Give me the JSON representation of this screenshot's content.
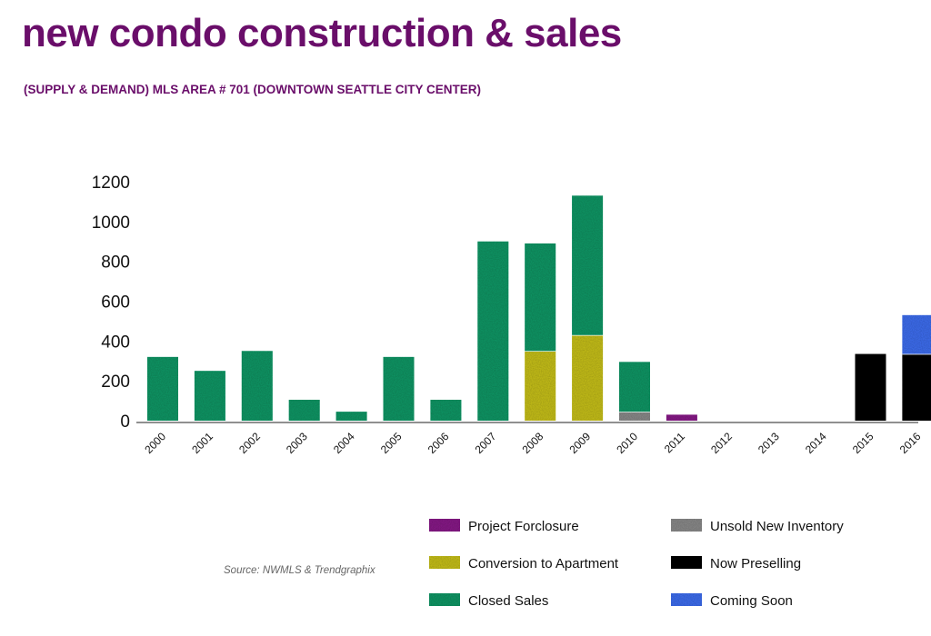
{
  "title": "new condo construction & sales",
  "subtitle": "(SUPPLY & DEMAND) MLS AREA # 701 (DOWNTOWN SEATTLE CITY CENTER)",
  "source": "Source: NWMLS & Trendgraphix",
  "colors": {
    "project_forclosure": "#8a1a8a",
    "unsold_new_inventory": "#8c8c8c",
    "conversion_to_apartment": "#c9c21a",
    "now_preselling": "#05050f",
    "closed_sales": "#129a68",
    "coming_soon": "#3f6ff2",
    "title": "#6a0e6a"
  },
  "chart_data": {
    "type": "bar",
    "stacked": true,
    "title": "new condo construction & sales",
    "ylim": [
      0,
      1200
    ],
    "yticks": [
      0,
      200,
      400,
      600,
      800,
      1000,
      1200
    ],
    "categories": [
      "2000",
      "2001",
      "2002",
      "2003",
      "2004",
      "2005",
      "2006",
      "2007",
      "2008",
      "2009",
      "2010",
      "2011",
      "2012",
      "2013",
      "2014",
      "2015",
      "2016"
    ],
    "series": [
      {
        "key": "unsold_new_inventory",
        "name": "Unsold New Inventory",
        "values": [
          0,
          0,
          0,
          0,
          0,
          0,
          0,
          0,
          0,
          0,
          45,
          0,
          0,
          0,
          0,
          0,
          0
        ]
      },
      {
        "key": "project_forclosure",
        "name": "Project Forclosure",
        "values": [
          0,
          0,
          0,
          0,
          0,
          0,
          0,
          0,
          0,
          0,
          0,
          30,
          0,
          0,
          0,
          0,
          0
        ]
      },
      {
        "key": "conversion_to_apartment",
        "name": "Conversion to Apartment",
        "values": [
          0,
          0,
          0,
          0,
          0,
          0,
          0,
          0,
          350,
          430,
          0,
          0,
          0,
          0,
          0,
          0,
          0
        ]
      },
      {
        "key": "closed_sales",
        "name": "Closed Sales",
        "values": [
          320,
          250,
          350,
          105,
          45,
          320,
          105,
          900,
          540,
          700,
          250,
          0,
          0,
          0,
          0,
          0,
          0
        ]
      },
      {
        "key": "now_preselling",
        "name": "Now Preselling",
        "values": [
          0,
          0,
          0,
          0,
          0,
          0,
          0,
          0,
          0,
          0,
          0,
          0,
          0,
          0,
          0,
          335,
          335
        ]
      },
      {
        "key": "coming_soon",
        "name": "Coming Soon",
        "values": [
          0,
          0,
          0,
          0,
          0,
          0,
          0,
          0,
          0,
          0,
          0,
          0,
          0,
          0,
          0,
          0,
          195
        ]
      }
    ],
    "legend": [
      [
        "project_forclosure",
        "unsold_new_inventory"
      ],
      [
        "conversion_to_apartment",
        "now_preselling"
      ],
      [
        "closed_sales",
        "coming_soon"
      ]
    ]
  }
}
